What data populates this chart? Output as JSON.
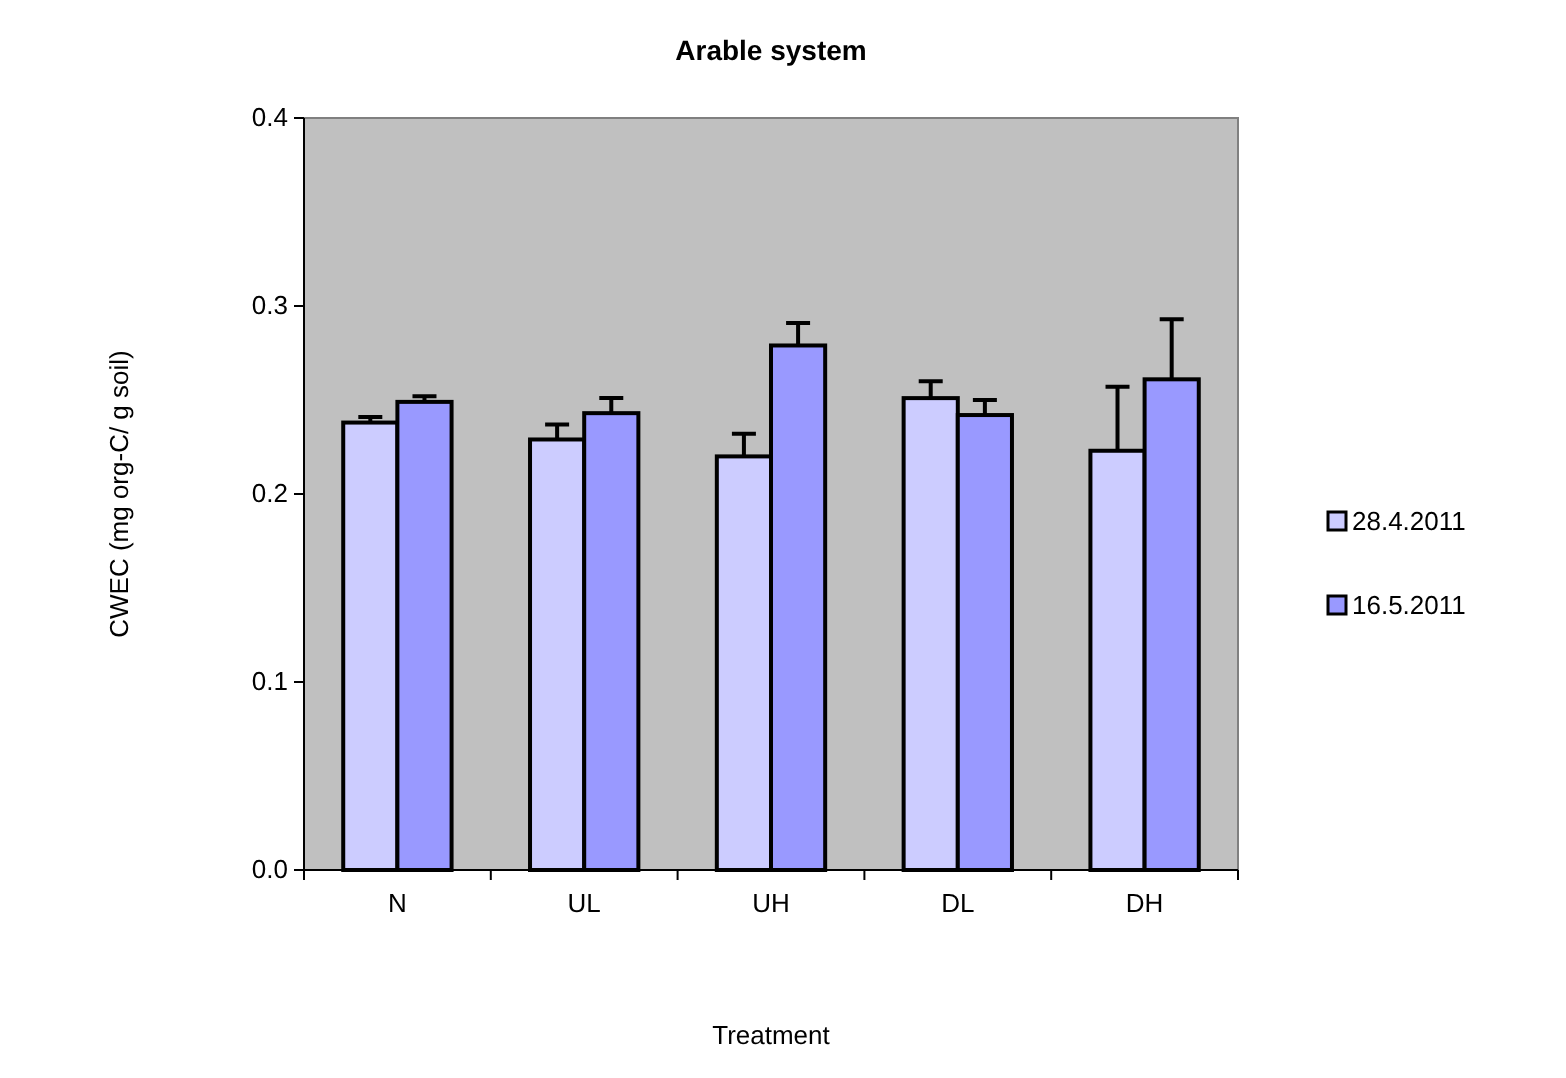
{
  "chart_data": {
    "type": "bar",
    "title": "Arable system",
    "xlabel": "Treatment",
    "ylabel": "CWEC (mg org-C/ g soil)",
    "categories": [
      "N",
      "UL",
      "UH",
      "DL",
      "DH"
    ],
    "series": [
      {
        "name": "28.4.2011",
        "color": "#ccccff",
        "values": [
          0.238,
          0.229,
          0.22,
          0.251,
          0.223
        ],
        "errors": [
          [
            0.238,
            0.241
          ],
          [
            0.229,
            0.237
          ],
          [
            0.22,
            0.232
          ],
          [
            0.251,
            0.26
          ],
          [
            0.223,
            0.257
          ]
        ]
      },
      {
        "name": "16.5.2011",
        "color": "#9999ff",
        "values": [
          0.249,
          0.243,
          0.279,
          0.242,
          0.261
        ],
        "errors": [
          [
            0.249,
            0.252
          ],
          [
            0.243,
            0.251
          ],
          [
            0.279,
            0.291
          ],
          [
            0.242,
            0.25
          ],
          [
            0.261,
            0.293
          ]
        ]
      }
    ],
    "ylim": [
      0,
      0.4
    ],
    "yticks": [
      {
        "value": 0,
        "label": "0.0"
      },
      {
        "value": 0.1,
        "label": "0.1"
      },
      {
        "value": 0.2,
        "label": "0.2"
      },
      {
        "value": 0.3,
        "label": "0.3"
      },
      {
        "value": 0.4,
        "label": "0.4"
      }
    ],
    "grid": false,
    "legend": "right"
  }
}
